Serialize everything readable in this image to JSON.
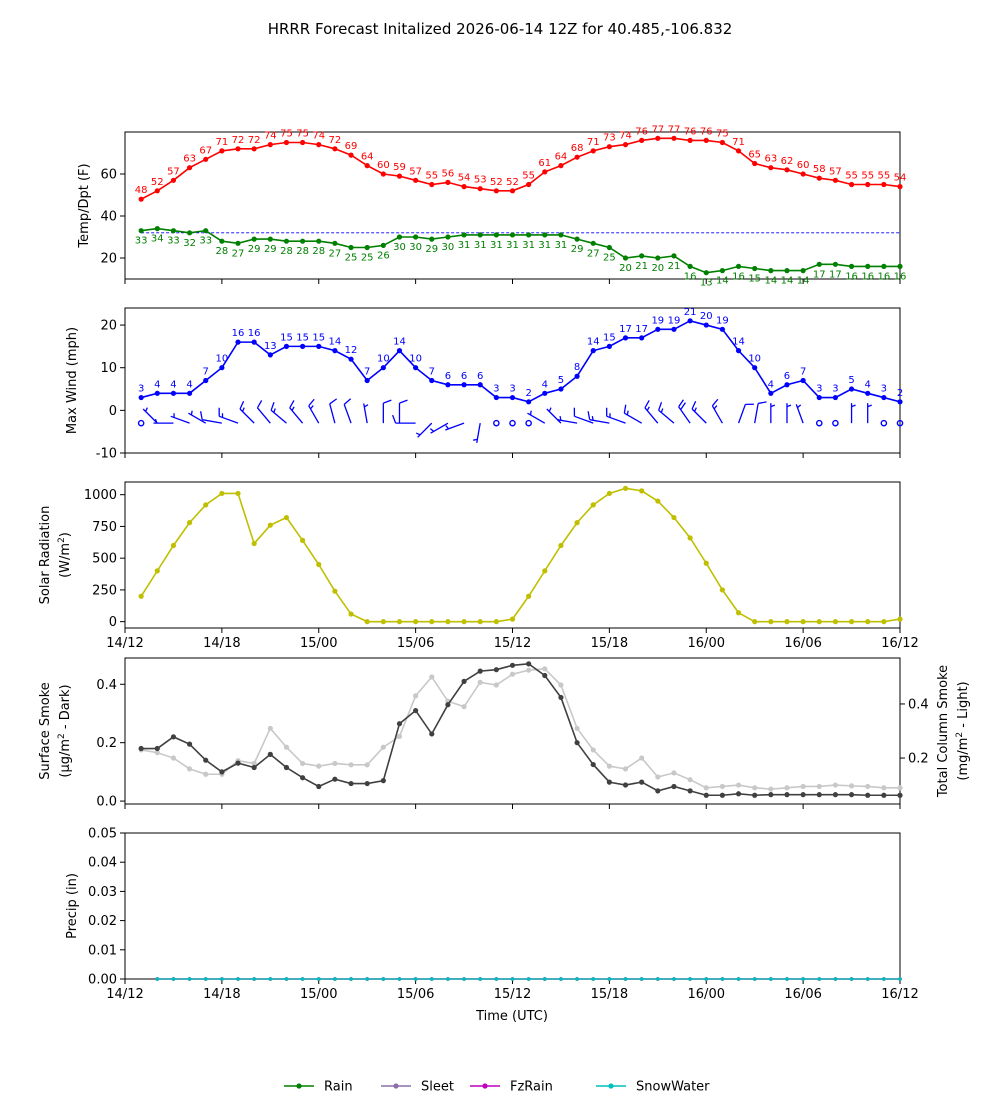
{
  "figure": {
    "title": "HRRR Forecast Initalized 2026-06-14 12Z for 40.485,-106.832",
    "xlabel": "Time (UTC)",
    "x_ticks": [
      "14/12",
      "14/18",
      "15/00",
      "15/06",
      "15/12",
      "15/18",
      "16/00",
      "16/06",
      "16/12"
    ],
    "time_start": "2026-06-14 13Z",
    "time_step_hours": 1
  },
  "colors": {
    "temp": "#ff0000",
    "dewpoint": "#008000",
    "freezing_line": "#0000ff",
    "wind": "#0000ff",
    "solar": "#bfbf00",
    "smoke_surface": "#404040",
    "smoke_column": "#c8c8c8",
    "rain": "#008000",
    "sleet": "#8c6fa8",
    "fzrain": "#bf00bf",
    "snowwater": "#00bfbf"
  },
  "chart_data": [
    {
      "type": "line",
      "id": "temperature",
      "ylabel": "Temp/Dpt (F)",
      "y_ticks": [
        20,
        40,
        60
      ],
      "ylim": [
        10,
        80
      ],
      "reference_line": 32,
      "series": [
        {
          "key": "temp",
          "values": [
            48,
            52,
            57,
            63,
            67,
            71,
            72,
            72,
            74,
            75,
            75,
            74,
            72,
            69,
            64,
            60,
            59,
            57,
            55,
            56,
            54,
            53,
            52,
            52,
            55,
            61,
            64,
            68,
            71,
            73,
            74,
            76,
            77,
            77,
            76,
            76,
            75,
            71,
            65,
            63,
            62,
            60,
            58,
            57,
            55,
            55,
            55,
            54
          ]
        },
        {
          "key": "dewpoint",
          "values": [
            33,
            34,
            33,
            32,
            33,
            28,
            27,
            29,
            29,
            28,
            28,
            28,
            27,
            25,
            25,
            26,
            30,
            30,
            29,
            30,
            31,
            31,
            31,
            31,
            31,
            31,
            31,
            29,
            27,
            25,
            20,
            21,
            20,
            21,
            16,
            13,
            14,
            16,
            15,
            14,
            14,
            14,
            17,
            17,
            16,
            16,
            16,
            16
          ]
        }
      ],
      "grid": false
    },
    {
      "type": "line",
      "id": "wind",
      "ylabel": "Max Wind (mph)",
      "y_ticks": [
        -10,
        0,
        10,
        20
      ],
      "ylim": [
        -10,
        24
      ],
      "series": [
        {
          "key": "wind",
          "values": [
            3,
            4,
            4,
            4,
            7,
            10,
            16,
            16,
            13,
            15,
            15,
            15,
            14,
            12,
            7,
            10,
            14,
            10,
            7,
            6,
            6,
            6,
            3,
            3,
            2,
            4,
            5,
            8,
            14,
            15,
            17,
            17,
            19,
            19,
            21,
            20,
            19,
            14,
            10,
            4,
            6,
            7,
            3,
            3,
            5,
            4,
            3,
            2
          ]
        }
      ],
      "wind_dir_deg": [
        270,
        315,
        270,
        290,
        300,
        280,
        290,
        315,
        320,
        310,
        320,
        330,
        345,
        340,
        350,
        0,
        0,
        270,
        225,
        240,
        250,
        190,
        200,
        270,
        270,
        300,
        315,
        280,
        290,
        280,
        290,
        300,
        320,
        310,
        325,
        315,
        330,
        20,
        10,
        0,
        0,
        340,
        270,
        300,
        0,
        0,
        270,
        270
      ],
      "grid": false
    },
    {
      "type": "line",
      "id": "solar",
      "ylabel": "Solar Radiation",
      "ylabel_units": "(W/m",
      "y_ticks": [
        0,
        250,
        500,
        750,
        1000
      ],
      "ylim": [
        -50,
        1100
      ],
      "series": [
        {
          "key": "solar",
          "values": [
            200,
            400,
            600,
            780,
            920,
            1010,
            1010,
            615,
            760,
            820,
            640,
            450,
            240,
            60,
            0,
            0,
            0,
            0,
            0,
            0,
            0,
            0,
            0,
            20,
            200,
            400,
            600,
            780,
            920,
            1010,
            1050,
            1030,
            950,
            820,
            660,
            460,
            250,
            70,
            0,
            0,
            0,
            0,
            0,
            0,
            0,
            0,
            0,
            20
          ]
        }
      ],
      "grid": false
    },
    {
      "type": "line",
      "id": "smoke",
      "ylabel": "Surface Smoke",
      "ylabel_units": "(μg/m",
      "ylabel_suffix": " - Dark)",
      "ylabel_right": "Total Column Smoke",
      "ylabel_right_units": "(mg/m",
      "ylabel_right_suffix": " - Light)",
      "y_ticks": [
        0.0,
        0.2,
        0.4
      ],
      "ylim": [
        -0.01,
        0.49
      ],
      "y2_ticks": [
        0.2,
        0.4
      ],
      "y2lim": [
        0.03,
        0.57
      ],
      "series": [
        {
          "key": "smoke_surface",
          "values": [
            0.18,
            0.18,
            0.22,
            0.195,
            0.14,
            0.1,
            0.13,
            0.115,
            0.16,
            0.115,
            0.08,
            0.05,
            0.075,
            0.06,
            0.06,
            0.07,
            0.265,
            0.31,
            0.23,
            0.33,
            0.41,
            0.445,
            0.45,
            0.465,
            0.47,
            0.43,
            0.355,
            0.2,
            0.125,
            0.065,
            0.055,
            0.065,
            0.035,
            0.05,
            0.035,
            0.02,
            0.02,
            0.025,
            0.02,
            0.022,
            0.022,
            0.022,
            0.022,
            0.022,
            0.022,
            0.02,
            0.02,
            0.02
          ],
          "axis": "left"
        },
        {
          "key": "smoke_column",
          "values": [
            0.23,
            0.22,
            0.2,
            0.16,
            0.14,
            0.14,
            0.19,
            0.18,
            0.31,
            0.24,
            0.18,
            0.17,
            0.18,
            0.175,
            0.175,
            0.24,
            0.28,
            0.43,
            0.5,
            0.41,
            0.39,
            0.48,
            0.47,
            0.51,
            0.525,
            0.53,
            0.47,
            0.31,
            0.23,
            0.17,
            0.16,
            0.2,
            0.13,
            0.145,
            0.12,
            0.09,
            0.095,
            0.1,
            0.09,
            0.085,
            0.09,
            0.095,
            0.095,
            0.1,
            0.097,
            0.095,
            0.09,
            0.09
          ],
          "axis": "right"
        }
      ],
      "grid": false
    },
    {
      "type": "line",
      "id": "precip",
      "ylabel": "Precip (in)",
      "y_ticks": [
        0.0,
        0.01,
        0.02,
        0.03,
        0.04,
        0.05
      ],
      "ylim": [
        0.0,
        0.05
      ],
      "series": [
        {
          "key": "rain",
          "name": "Rain",
          "constant": 0
        },
        {
          "key": "sleet",
          "name": "Sleet",
          "constant": 0
        },
        {
          "key": "fzrain",
          "name": "FzRain",
          "constant": 0
        },
        {
          "key": "snowwater",
          "name": "SnowWater",
          "constant": 0
        }
      ],
      "legend": "bottom-center",
      "grid": false
    }
  ]
}
